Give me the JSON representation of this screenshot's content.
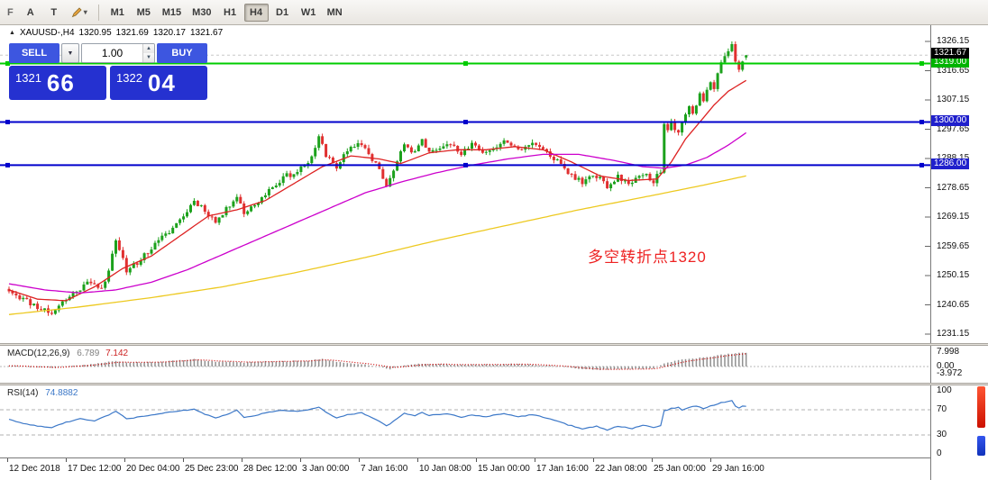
{
  "toolbar": {
    "file_label": "F",
    "cursor_tool_label": "A",
    "text_tool_label": "T",
    "timeframes": [
      "M1",
      "M5",
      "M15",
      "M30",
      "H1",
      "H4",
      "D1",
      "W1",
      "MN"
    ],
    "active_timeframe": "H4"
  },
  "header": {
    "symbol_period": "XAUUSD-,H4",
    "open": "1320.95",
    "high": "1321.69",
    "low": "1320.17",
    "close": "1321.67"
  },
  "trade_panel": {
    "sell_label": "SELL",
    "buy_label": "BUY",
    "volume_value": "1.00",
    "bid": {
      "figure": "1321",
      "pips": "66"
    },
    "ask": {
      "figure": "1322",
      "pips": "04"
    }
  },
  "annotation": {
    "text": "多空转折点1320",
    "color": "#ee2222"
  },
  "chart_data": {
    "type": "candlestick",
    "symbol": "XAUUSD-",
    "timeframe": "H4",
    "ohlc_current": {
      "open": 1320.95,
      "high": 1321.69,
      "low": 1320.17,
      "close": 1321.67
    },
    "price_axis": {
      "min": 1231.15,
      "max": 1326.15,
      "ticks": [
        1326.15,
        1316.65,
        1307.15,
        1297.65,
        1288.15,
        1278.65,
        1269.15,
        1259.65,
        1250.15,
        1240.65,
        1231.15
      ]
    },
    "time_labels": [
      "12 Dec 2018",
      "17 Dec 12:00",
      "20 Dec 04:00",
      "25 Dec 23:00",
      "28 Dec 12:00",
      "3 Jan 00:00",
      "7 Jan 16:00",
      "10 Jan 08:00",
      "15 Jan 00:00",
      "17 Jan 16:00",
      "22 Jan 08:00",
      "25 Jan 00:00",
      "29 Jan 16:00"
    ],
    "candle_count": 208,
    "peak_index": 203,
    "noise": {
      "body": 0.9,
      "wick": 1.1,
      "seed": 11
    },
    "close_anchors": [
      [
        0,
        1245.5
      ],
      [
        4,
        1242.5
      ],
      [
        8,
        1240.0
      ],
      [
        12,
        1238.0
      ],
      [
        15,
        1241.5
      ],
      [
        20,
        1246.0
      ],
      [
        23,
        1248.5
      ],
      [
        26,
        1246.0
      ],
      [
        28,
        1252.0
      ],
      [
        30,
        1261.0
      ],
      [
        33,
        1252.0
      ],
      [
        36,
        1254.5
      ],
      [
        40,
        1259.0
      ],
      [
        45,
        1264.5
      ],
      [
        49,
        1269.5
      ],
      [
        52,
        1274.5
      ],
      [
        55,
        1271.5
      ],
      [
        58,
        1267.5
      ],
      [
        61,
        1271.5
      ],
      [
        64,
        1276.5
      ],
      [
        66,
        1270.5
      ],
      [
        69,
        1273.0
      ],
      [
        73,
        1278.0
      ],
      [
        77,
        1282.0
      ],
      [
        81,
        1284.0
      ],
      [
        85,
        1288.0
      ],
      [
        87,
        1295.0
      ],
      [
        89,
        1289.5
      ],
      [
        92,
        1285.5
      ],
      [
        95,
        1290.5
      ],
      [
        99,
        1293.0
      ],
      [
        102,
        1288.0
      ],
      [
        104,
        1285.0
      ],
      [
        106,
        1279.0
      ],
      [
        107,
        1281.5
      ],
      [
        109,
        1287.0
      ],
      [
        111,
        1292.5
      ],
      [
        114,
        1290.0
      ],
      [
        116,
        1294.0
      ],
      [
        118,
        1290.5
      ],
      [
        123,
        1293.5
      ],
      [
        127,
        1289.5
      ],
      [
        130,
        1292.5
      ],
      [
        134,
        1290.0
      ],
      [
        139,
        1294.0
      ],
      [
        143,
        1291.0
      ],
      [
        147,
        1293.0
      ],
      [
        151,
        1290.0
      ],
      [
        154,
        1287.5
      ],
      [
        157,
        1283.5
      ],
      [
        161,
        1280.5
      ],
      [
        165,
        1282.5
      ],
      [
        168,
        1279.0
      ],
      [
        171,
        1282.0
      ],
      [
        175,
        1280.0
      ],
      [
        178,
        1283.5
      ],
      [
        181,
        1281.0
      ],
      [
        183,
        1283.5
      ],
      [
        184,
        1300.0
      ],
      [
        185,
        1297.5
      ],
      [
        186,
        1301.0
      ],
      [
        187,
        1298.0
      ],
      [
        188,
        1296.5
      ],
      [
        189,
        1300.5
      ],
      [
        190,
        1303.0
      ],
      [
        191,
        1305.5
      ],
      [
        192,
        1303.0
      ],
      [
        193,
        1306.0
      ],
      [
        194,
        1309.0
      ],
      [
        195,
        1306.5
      ],
      [
        196,
        1310.5
      ],
      [
        197,
        1313.5
      ],
      [
        198,
        1311.0
      ],
      [
        199,
        1315.5
      ],
      [
        200,
        1318.5
      ],
      [
        201,
        1321.0
      ],
      [
        202,
        1323.5
      ],
      [
        203,
        1325.0
      ],
      [
        204,
        1319.0
      ],
      [
        205,
        1317.5
      ],
      [
        206,
        1320.5
      ],
      [
        207,
        1321.67
      ]
    ],
    "ma_lines": [
      {
        "name": "ma-fast-red",
        "color": "#dd2222",
        "anchors": [
          [
            0,
            1245.5
          ],
          [
            8,
            1242.5
          ],
          [
            16,
            1242.0
          ],
          [
            24,
            1246.5
          ],
          [
            32,
            1252.5
          ],
          [
            40,
            1256.5
          ],
          [
            48,
            1263.0
          ],
          [
            56,
            1269.5
          ],
          [
            64,
            1271.5
          ],
          [
            72,
            1274.5
          ],
          [
            80,
            1280.0
          ],
          [
            88,
            1285.5
          ],
          [
            96,
            1289.0
          ],
          [
            104,
            1288.0
          ],
          [
            110,
            1286.5
          ],
          [
            118,
            1290.0
          ],
          [
            126,
            1291.0
          ],
          [
            134,
            1291.0
          ],
          [
            142,
            1292.0
          ],
          [
            150,
            1291.0
          ],
          [
            158,
            1287.0
          ],
          [
            166,
            1282.5
          ],
          [
            174,
            1281.0
          ],
          [
            182,
            1281.5
          ],
          [
            186,
            1287.0
          ],
          [
            190,
            1294.5
          ],
          [
            194,
            1300.0
          ],
          [
            198,
            1305.5
          ],
          [
            202,
            1310.0
          ],
          [
            207,
            1313.5
          ]
        ]
      },
      {
        "name": "ma-mid-magenta",
        "color": "#cc00cc",
        "anchors": [
          [
            0,
            1247.5
          ],
          [
            10,
            1245.5
          ],
          [
            20,
            1244.5
          ],
          [
            30,
            1245.5
          ],
          [
            40,
            1248.0
          ],
          [
            50,
            1252.0
          ],
          [
            60,
            1257.0
          ],
          [
            70,
            1262.0
          ],
          [
            80,
            1267.0
          ],
          [
            90,
            1272.0
          ],
          [
            100,
            1277.0
          ],
          [
            110,
            1280.5
          ],
          [
            120,
            1283.5
          ],
          [
            130,
            1286.0
          ],
          [
            140,
            1288.0
          ],
          [
            150,
            1289.5
          ],
          [
            160,
            1289.5
          ],
          [
            170,
            1287.5
          ],
          [
            178,
            1285.5
          ],
          [
            184,
            1285.0
          ],
          [
            190,
            1286.0
          ],
          [
            196,
            1288.5
          ],
          [
            202,
            1292.5
          ],
          [
            207,
            1296.5
          ]
        ]
      },
      {
        "name": "ma-slow-yellow",
        "color": "#edc920",
        "anchors": [
          [
            0,
            1237.5
          ],
          [
            20,
            1240.0
          ],
          [
            40,
            1243.0
          ],
          [
            60,
            1246.5
          ],
          [
            80,
            1251.0
          ],
          [
            100,
            1256.0
          ],
          [
            120,
            1261.5
          ],
          [
            140,
            1266.5
          ],
          [
            160,
            1271.5
          ],
          [
            180,
            1276.0
          ],
          [
            195,
            1279.5
          ],
          [
            207,
            1282.5
          ]
        ]
      }
    ],
    "hlines": [
      {
        "price": 1319.0,
        "label": "1319.00",
        "color": "#00cc00",
        "badge": "#00b300"
      },
      {
        "price": 1300.0,
        "label": "1300.00",
        "color": "#0000cc",
        "badge": "#2020cc"
      },
      {
        "price": 1286.0,
        "label": "1286.00",
        "color": "#0000cc",
        "badge": "#2020cc"
      }
    ],
    "last_badge": {
      "label": "1321.67",
      "bg": "#000000"
    },
    "macd": {
      "name": "MACD(12,26,9)",
      "value_main": "6.789",
      "value_signal": "7.142",
      "scale_labels": [
        "7.998",
        "0.00",
        "-3.972"
      ],
      "bar_color": "#909090",
      "signal_color": "#cc0000",
      "anchors": [
        [
          0,
          0.6
        ],
        [
          6,
          -0.3
        ],
        [
          12,
          -0.8
        ],
        [
          18,
          0.4
        ],
        [
          24,
          1.4
        ],
        [
          30,
          3.2
        ],
        [
          34,
          2.2
        ],
        [
          40,
          2.4
        ],
        [
          46,
          3.2
        ],
        [
          52,
          4.0
        ],
        [
          57,
          2.8
        ],
        [
          62,
          2.6
        ],
        [
          66,
          2.2
        ],
        [
          72,
          2.8
        ],
        [
          78,
          3.0
        ],
        [
          84,
          3.3
        ],
        [
          88,
          4.2
        ],
        [
          92,
          2.6
        ],
        [
          96,
          1.6
        ],
        [
          100,
          1.2
        ],
        [
          104,
          -0.4
        ],
        [
          107,
          -1.4
        ],
        [
          111,
          0.6
        ],
        [
          116,
          1.6
        ],
        [
          121,
          1.3
        ],
        [
          126,
          1.0
        ],
        [
          131,
          1.2
        ],
        [
          136,
          1.1
        ],
        [
          141,
          1.4
        ],
        [
          146,
          1.1
        ],
        [
          151,
          0.6
        ],
        [
          156,
          -0.3
        ],
        [
          161,
          -1.4
        ],
        [
          166,
          -2.0
        ],
        [
          171,
          -1.5
        ],
        [
          176,
          -1.3
        ],
        [
          181,
          -0.9
        ],
        [
          184,
          1.8
        ],
        [
          187,
          3.2
        ],
        [
          190,
          4.0
        ],
        [
          193,
          4.6
        ],
        [
          196,
          5.3
        ],
        [
          199,
          6.2
        ],
        [
          202,
          7.0
        ],
        [
          205,
          7.6
        ],
        [
          207,
          7.4
        ]
      ]
    },
    "rsi": {
      "name": "RSI(14)",
      "value": "74.8882",
      "levels": [
        100,
        70,
        30,
        0
      ],
      "dashed_levels": [
        70,
        30
      ],
      "color": "#3c78c8",
      "anchors": [
        [
          0,
          55
        ],
        [
          4,
          48
        ],
        [
          8,
          44
        ],
        [
          12,
          42
        ],
        [
          16,
          50
        ],
        [
          20,
          56
        ],
        [
          24,
          52
        ],
        [
          28,
          62
        ],
        [
          30,
          68
        ],
        [
          33,
          56
        ],
        [
          36,
          58
        ],
        [
          40,
          62
        ],
        [
          45,
          66
        ],
        [
          49,
          69
        ],
        [
          52,
          71
        ],
        [
          55,
          63
        ],
        [
          58,
          57
        ],
        [
          61,
          62
        ],
        [
          64,
          69
        ],
        [
          66,
          58
        ],
        [
          69,
          61
        ],
        [
          73,
          66
        ],
        [
          77,
          69
        ],
        [
          81,
          68
        ],
        [
          85,
          71
        ],
        [
          87,
          74
        ],
        [
          89,
          66
        ],
        [
          92,
          57
        ],
        [
          95,
          62
        ],
        [
          99,
          65
        ],
        [
          102,
          57
        ],
        [
          104,
          52
        ],
        [
          106,
          44
        ],
        [
          107,
          48
        ],
        [
          109,
          56
        ],
        [
          111,
          64
        ],
        [
          114,
          60
        ],
        [
          116,
          66
        ],
        [
          118,
          61
        ],
        [
          123,
          64
        ],
        [
          127,
          58
        ],
        [
          130,
          62
        ],
        [
          134,
          59
        ],
        [
          139,
          64
        ],
        [
          143,
          59
        ],
        [
          147,
          62
        ],
        [
          151,
          57
        ],
        [
          154,
          52
        ],
        [
          157,
          46
        ],
        [
          161,
          40
        ],
        [
          165,
          44
        ],
        [
          168,
          38
        ],
        [
          171,
          44
        ],
        [
          175,
          40
        ],
        [
          178,
          46
        ],
        [
          181,
          42
        ],
        [
          183,
          45
        ],
        [
          184,
          68
        ],
        [
          186,
          72
        ],
        [
          188,
          74
        ],
        [
          189,
          70
        ],
        [
          191,
          74
        ],
        [
          193,
          76
        ],
        [
          195,
          72
        ],
        [
          197,
          76
        ],
        [
          199,
          79
        ],
        [
          200,
          81
        ],
        [
          202,
          83
        ],
        [
          203,
          84
        ],
        [
          204,
          76
        ],
        [
          205,
          73
        ],
        [
          206,
          76
        ],
        [
          207,
          74.9
        ]
      ]
    },
    "colors": {
      "bull": "#1ca11c",
      "bear": "#e03030",
      "background": "#ffffff"
    }
  }
}
